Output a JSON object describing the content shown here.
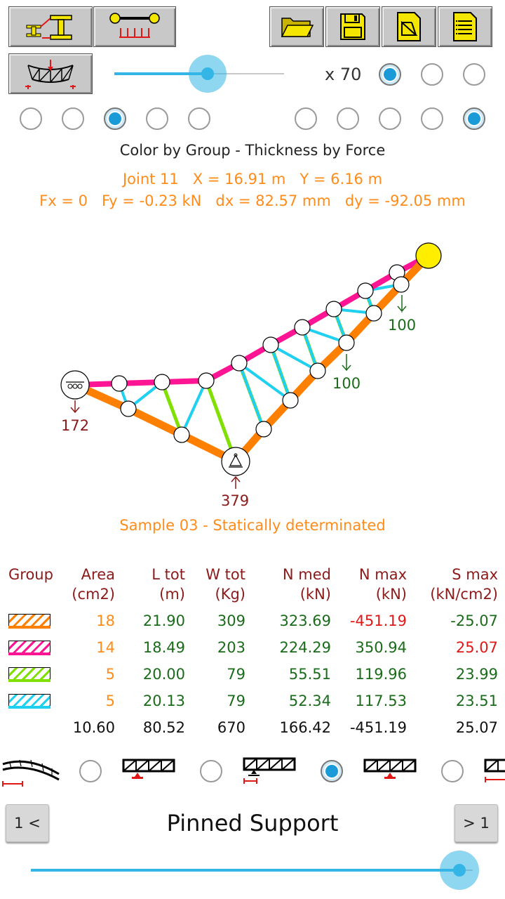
{
  "toolbar": {
    "left_icons": [
      "section-icon",
      "load-bar-icon"
    ],
    "right_icons": [
      "open-folder-icon",
      "save-icon",
      "export-icon",
      "report-icon"
    ],
    "view_icon": "deformed-truss-icon"
  },
  "scale": {
    "label": "x 70",
    "slider_value": 0.55,
    "options_selected": 0
  },
  "mode_radios": {
    "left_selected": 2,
    "right_selected": 4
  },
  "info": {
    "color_mode": "Color by Group - Thickness by Force",
    "joint_line": "Joint 11   X = 16.91 m   Y = 6.16 m",
    "force_line": "Fx = 0   Fy = -0.23 kN   dx = 82.57 mm   dy = -92.05 mm"
  },
  "diagram": {
    "load_labels": [
      "100",
      "100"
    ],
    "reaction_left": "172",
    "reaction_bottom": "379",
    "caption": "Sample 03 - Statically determinated"
  },
  "table": {
    "headers": [
      {
        "l1": "Group",
        "l2": ""
      },
      {
        "l1": "Area",
        "l2": "(cm2)"
      },
      {
        "l1": "L tot",
        "l2": "(m)"
      },
      {
        "l1": "W tot",
        "l2": "(Kg)"
      },
      {
        "l1": "N med",
        "l2": "(kN)"
      },
      {
        "l1": "N max",
        "l2": "(kN)"
      },
      {
        "l1": "S max",
        "l2": "(kN/cm2)"
      }
    ],
    "rows": [
      {
        "swatch": "#ff8000",
        "area": "18",
        "ltot": "21.90",
        "wtot": "309",
        "nmed": "323.69",
        "nmax": "-451.19",
        "smax": "-25.07",
        "nmax_color": "#e01818",
        "smax_color": "#1a6b1a"
      },
      {
        "swatch": "#ff1493",
        "area": "14",
        "ltot": "18.49",
        "wtot": "203",
        "nmed": "224.29",
        "nmax": "350.94",
        "smax": "25.07",
        "nmax_color": "#1a6b1a",
        "smax_color": "#e01818"
      },
      {
        "swatch": "#80e000",
        "area": "5",
        "ltot": "20.00",
        "wtot": "79",
        "nmed": "55.51",
        "nmax": "119.96",
        "smax": "23.99",
        "nmax_color": "#1a6b1a",
        "smax_color": "#1a6b1a"
      },
      {
        "swatch": "#20d0f0",
        "area": "5",
        "ltot": "20.13",
        "wtot": "79",
        "nmed": "52.34",
        "nmax": "117.53",
        "smax": "23.51",
        "nmax_color": "#1a6b1a",
        "smax_color": "#1a6b1a"
      }
    ],
    "totals": {
      "area": "10.60",
      "ltot": "80.52",
      "wtot": "670",
      "nmed": "166.42",
      "nmax": "-451.19",
      "smax": "25.07"
    }
  },
  "support_selector": {
    "selected": 2,
    "prev_label": "1 <",
    "next_label": "> 1",
    "title": "Pinned Support"
  },
  "bottom_slider": {
    "value": 0.97
  },
  "colors": {
    "slider": "#33b5e5",
    "orange_text": "#ff8c1a",
    "green_text": "#1a6b1a",
    "red_text": "#e01818",
    "dark_red_text": "#8b1a1a"
  }
}
